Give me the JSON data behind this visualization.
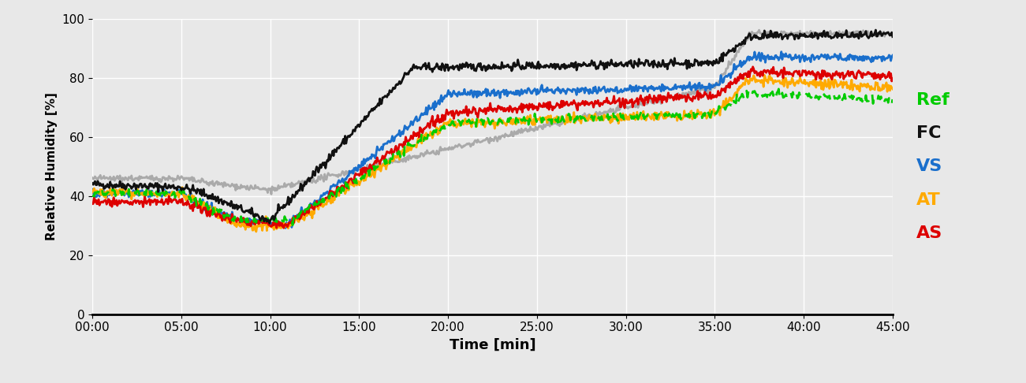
{
  "xlabel": "Time [min]",
  "ylabel": "Relative Humidity [%]",
  "ylim": [
    0,
    100
  ],
  "xlim": [
    0,
    2700
  ],
  "yticks": [
    0,
    20,
    40,
    60,
    80,
    100
  ],
  "xtick_minutes": [
    0,
    5,
    10,
    15,
    20,
    25,
    30,
    35,
    40,
    45
  ],
  "background_color": "#e8e8e8",
  "legend_labels": [
    "Ref",
    "FC",
    "VS",
    "AT",
    "AS"
  ],
  "legend_colors": [
    "#00cc00",
    "#111111",
    "#1a6fcc",
    "#ffaa00",
    "#dd0000"
  ],
  "series_colors": {
    "Ref": "#aaaaaa",
    "FC": "#111111",
    "VS": "#1a6fcc",
    "AT": "#ffaa00",
    "AS": "#dd0000",
    "Ref_dashed": "#00cc00"
  },
  "line_widths": {
    "Ref": 2.0,
    "FC": 2.0,
    "VS": 2.0,
    "AT": 2.0,
    "AS": 2.0,
    "Ref_dashed": 2.0
  }
}
